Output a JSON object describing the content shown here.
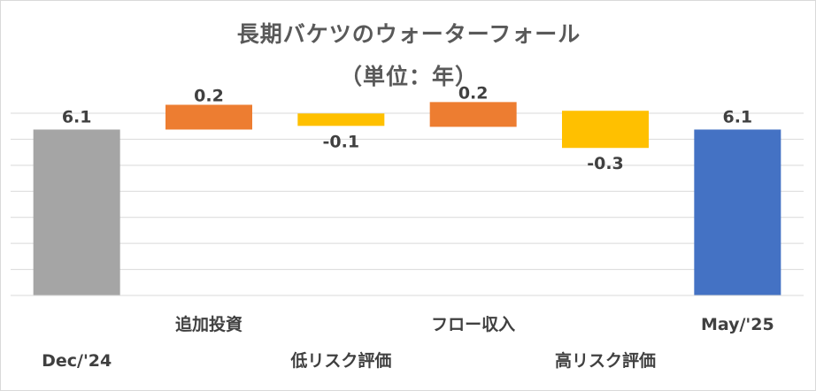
{
  "chart_data": {
    "type": "bar",
    "subtype": "waterfall",
    "title": "長期バケツのウォーターフォール",
    "subtitle": "（単位：年）",
    "categories": [
      "Dec/'24",
      "追加投資",
      "低リスク評価",
      "フロー収入",
      "高リスク評価",
      "May/'25"
    ],
    "values": [
      6.1,
      0.2,
      -0.1,
      0.2,
      -0.3,
      6.1
    ],
    "data_labels": [
      "6.1",
      "0.2",
      "-0.1",
      "0.2",
      "-0.3",
      "6.1"
    ],
    "bar_kinds": [
      "total",
      "delta",
      "delta",
      "delta",
      "delta",
      "total"
    ],
    "ylim": [
      0,
      6.7
    ],
    "grid": true,
    "legend": "none",
    "colors": [
      "#a5a5a5",
      "#ed7d31",
      "#ffc000",
      "#ed7d31",
      "#ffc000",
      "#4472c4"
    ]
  }
}
